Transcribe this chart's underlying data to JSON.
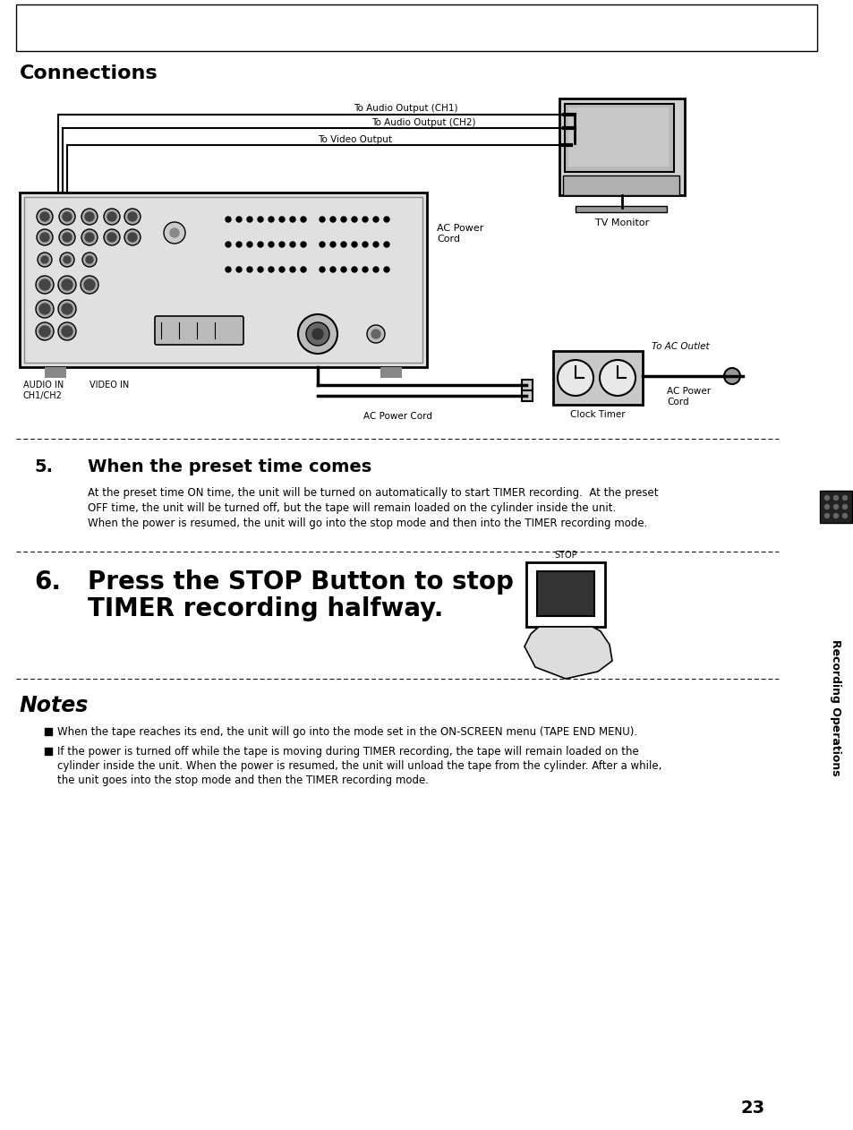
{
  "bg_color": "#ffffff",
  "title_connections": "Connections",
  "section5_number": "5.",
  "section5_title": "When the preset time comes",
  "section5_body_line1": "At the preset time ON time, the unit will be turned on automatically to start TIMER recording.  At the preset",
  "section5_body_line2": "OFF time, the unit will be turned off, but the tape will remain loaded on the cylinder inside the unit.",
  "section5_body_line3": "When the power is resumed, the unit will go into the stop mode and then into the TIMER recording mode.",
  "section6_number": "6.",
  "section6_title_line1": "Press the STOP Button to stop",
  "section6_title_line2": "TIMER recording halfway.",
  "notes_title": "Notes",
  "notes_bullet1": "When the tape reaches its end, the unit will go into the mode set in the ON-SCREEN menu (TAPE END MENU).",
  "notes_bullet2_line1": "If the power is turned off while the tape is moving during TIMER recording, the tape will remain loaded on the",
  "notes_bullet2_line2": "cylinder inside the unit. When the power is resumed, the unit will unload the tape from the cylinder. After a while,",
  "notes_bullet2_line3": "the unit goes into the stop mode and then the TIMER recording mode.",
  "page_number": "23",
  "sidebar_text": "Recording Operations",
  "label_audio_ch1": "To Audio Output (CH1)",
  "label_audio_ch2": "To Audio Output (CH2)",
  "label_video_out": "To Video Output",
  "label_tv_monitor": "TV Monitor",
  "label_ac_power_cord_diag": "AC Power\nCord",
  "label_audio_in": "AUDIO IN\nCH1/CH2",
  "label_video_in": "VIDEO IN",
  "label_ac_power_cord2": "AC Power Cord",
  "label_clock_timer": "Clock Timer",
  "label_ac_power_cord3": "AC Power\nCord",
  "label_to_ac_outlet": "To AC Outlet",
  "label_stop": "STOP"
}
